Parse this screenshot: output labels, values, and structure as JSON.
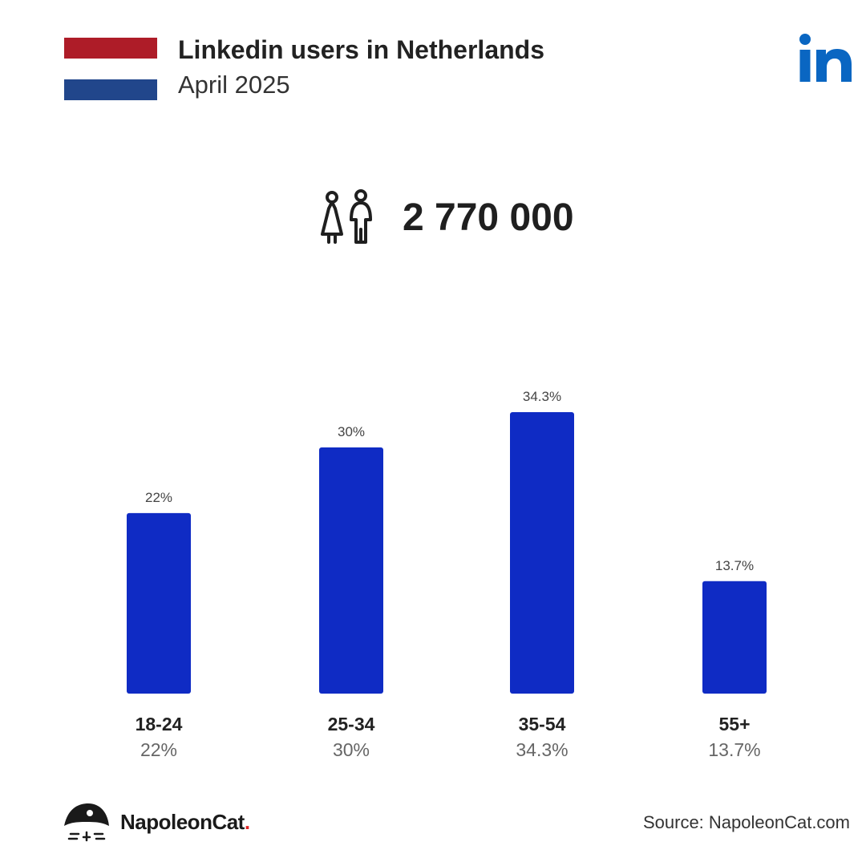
{
  "header": {
    "title": "Linkedin users in Netherlands",
    "subtitle": "April 2025"
  },
  "icons": {
    "flag": "netherlands-flag-icon",
    "brand": "linkedin-logo",
    "users": "people-icon",
    "footer_logo": "napoleoncat-logo"
  },
  "colors": {
    "bar": "#0F2BC4",
    "flag_red": "#AE1C28",
    "flag_white": "#FFFFFF",
    "flag_blue": "#21468B",
    "linkedin_blue": "#0A66C2",
    "brand_dot": "#E02424"
  },
  "total_users": "2 770 000",
  "chart_data": {
    "type": "bar",
    "categories": [
      "18-24",
      "25-34",
      "35-54",
      "55+"
    ],
    "values": [
      22,
      30,
      34.3,
      13.7
    ],
    "value_labels": [
      "22%",
      "30%",
      "34.3%",
      "13.7%"
    ],
    "unit": "%",
    "title": "",
    "xlabel": "",
    "ylabel": "",
    "ylim": [
      0,
      40
    ],
    "grid": false,
    "legend": "none"
  },
  "footer": {
    "brand": "NapoleonCat",
    "brand_dot": ".",
    "source": "Source: NapoleonCat.com"
  }
}
